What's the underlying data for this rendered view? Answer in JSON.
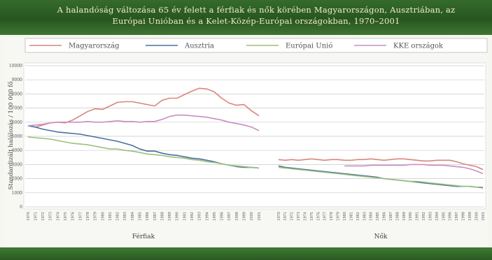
{
  "slide": {
    "title_line1": "A halandóság változása 65 év felett a férfiak és nők körében Magyarországon, Ausztriában, az",
    "title_line2": "Európai Unióban és a Kelet-Közép-Európai országokban, 1970–2001",
    "footer": ""
  },
  "colors": {
    "Magyarország": "#d9857b",
    "Ausztria": "#4a6fa0",
    "Európai Unió": "#9bbf7c",
    "KKE országok": "#c98fc2",
    "grid": "#c9c9c9",
    "plot_bg": "#ffffff"
  },
  "chart_data": {
    "type": "line",
    "title": "",
    "ylabel": "Standardizált halálozás / 100 000 fő",
    "ylim": [
      0,
      10000
    ],
    "yticks": [
      {
        "value": 0,
        "label": "0"
      },
      {
        "value": 1000,
        "label": "1000"
      },
      {
        "value": 2000,
        "label": "2000"
      },
      {
        "value": 3000,
        "label": "3000"
      },
      {
        "value": 4000,
        "label": "4000"
      },
      {
        "value": 5000,
        "label": "5000"
      },
      {
        "value": 6000,
        "label": "6000"
      },
      {
        "value": 7000,
        "label": "7000"
      },
      {
        "value": 8000,
        "label": "8000"
      },
      {
        "value": 9000,
        "label": "9000"
      },
      {
        "value": 10000,
        "label": "10000"
      }
    ],
    "grid": true,
    "legend_position": "top",
    "legend": [
      "Magyarország",
      "Ausztria",
      "Európai Unió",
      "KKE országok"
    ],
    "groups": [
      {
        "label": "Férfiak",
        "x": [
          "1970",
          "1971",
          "1972",
          "1973",
          "1974",
          "1975",
          "1976",
          "1977",
          "1978",
          "1979",
          "1980",
          "1981",
          "1982",
          "1983",
          "1984",
          "1985",
          "1986",
          "1987",
          "1988",
          "1989",
          "1990",
          "1991",
          "1992",
          "1993",
          "1994",
          "1995",
          "1996",
          "1997",
          "1998",
          "1999",
          "2000",
          "2001"
        ],
        "series": [
          {
            "name": "Magyarország",
            "values": [
              5750,
              5650,
              5800,
              5950,
              6000,
              5950,
              6150,
              6450,
              6750,
              6950,
              6900,
              7150,
              7400,
              7450,
              7450,
              7350,
              7250,
              7150,
              7550,
              7700,
              7700,
              7950,
              8200,
              8400,
              8350,
              8150,
              7700,
              7350,
              7200,
              7250,
              6800,
              6450
            ]
          },
          {
            "name": "Ausztria",
            "values": [
              5750,
              5650,
              5500,
              5400,
              5300,
              5250,
              5200,
              5150,
              5050,
              4950,
              4850,
              4750,
              4650,
              4500,
              4350,
              4100,
              3950,
              3950,
              3800,
              3700,
              3650,
              3550,
              3450,
              3400,
              3300,
              3200,
              3050,
              2950,
              2850,
              2800,
              2800,
              2750
            ]
          },
          {
            "name": "Európai Unió",
            "values": [
              4950,
              4900,
              4850,
              4800,
              4700,
              4600,
              4500,
              4450,
              4400,
              4300,
              4200,
              4100,
              4100,
              4000,
              3950,
              3850,
              3750,
              3700,
              3650,
              3550,
              3500,
              3450,
              3350,
              3300,
              3200,
              3150,
              3050,
              2950,
              2900,
              2850,
              2800,
              2750
            ]
          },
          {
            "name": "KKE országok",
            "values": [
              5750,
              5800,
              5850,
              5950,
              6000,
              6000,
              6000,
              6000,
              6050,
              6000,
              6000,
              6050,
              6100,
              6050,
              6050,
              6000,
              6050,
              6050,
              6200,
              6400,
              6500,
              6500,
              6450,
              6400,
              6350,
              6250,
              6150,
              6000,
              5900,
              5800,
              5650,
              5400
            ]
          }
        ]
      },
      {
        "label": "Nők",
        "x": [
          "1970",
          "1971",
          "1972",
          "1973",
          "1974",
          "1975",
          "1976",
          "1977",
          "1978",
          "1979",
          "1980",
          "1981",
          "1982",
          "1983",
          "1984",
          "1985",
          "1986",
          "1987",
          "1988",
          "1989",
          "1990",
          "1991",
          "1992",
          "1993",
          "1994",
          "1995",
          "1996",
          "1997",
          "1998",
          "1999",
          "2000",
          "2001"
        ],
        "series": [
          {
            "name": "Magyarország",
            "values": [
              3350,
              3300,
              3350,
              3300,
              3350,
              3400,
              3350,
              3300,
              3350,
              3350,
              3300,
              3300,
              3350,
              3350,
              3400,
              3350,
              3300,
              3350,
              3400,
              3400,
              3350,
              3300,
              3250,
              3250,
              3300,
              3300,
              3300,
              3200,
              3050,
              2950,
              2850,
              2650
            ]
          },
          {
            "name": "Ausztria",
            "values": [
              2900,
              2800,
              2750,
              2700,
              2650,
              2600,
              2550,
              2500,
              2450,
              2400,
              2350,
              2300,
              2250,
              2200,
              2150,
              2100,
              2000,
              1950,
              1900,
              1850,
              1800,
              1750,
              1700,
              1650,
              1600,
              1550,
              1500,
              1450,
              1450,
              1450,
              1400,
              1350
            ]
          },
          {
            "name": "Európai Unió",
            "values": [
              2800,
              2750,
              2700,
              2650,
              2600,
              2550,
              2500,
              2450,
              2400,
              2350,
              2300,
              2250,
              2200,
              2150,
              2100,
              2050,
              2000,
              1950,
              1900,
              1850,
              1800,
              1800,
              1750,
              1700,
              1650,
              1600,
              1550,
              1500,
              1450,
              1450,
              1400,
              1400
            ]
          },
          {
            "name": "KKE országok",
            "values": [
              null,
              null,
              null,
              null,
              null,
              null,
              null,
              null,
              null,
              null,
              2900,
              2900,
              2900,
              2900,
              2950,
              2950,
              2950,
              2950,
              2950,
              2950,
              3000,
              3000,
              3000,
              2950,
              2950,
              2950,
              2900,
              2850,
              2800,
              2700,
              2550,
              2350
            ]
          }
        ]
      }
    ]
  }
}
